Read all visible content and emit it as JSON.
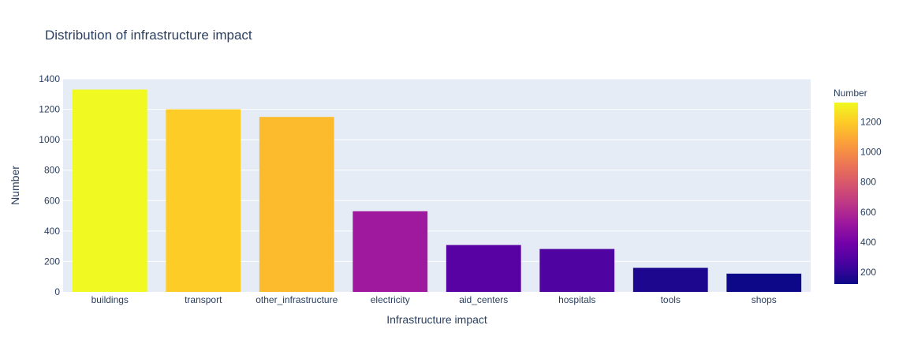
{
  "chart_data": {
    "type": "bar",
    "title": "Distribution of infrastructure impact",
    "xlabel": "Infrastructure impact",
    "ylabel": "Number",
    "categories": [
      "buildings",
      "transport",
      "other_infrastructure",
      "electricity",
      "aid_centers",
      "hospitals",
      "tools",
      "shops"
    ],
    "values": [
      1330,
      1200,
      1150,
      530,
      308,
      282,
      158,
      120
    ],
    "ylim": [
      0,
      1400
    ],
    "yticks": [
      "0",
      "200",
      "400",
      "600",
      "800",
      "1000",
      "1200",
      "1400"
    ],
    "grid": true,
    "colorbar": {
      "title": "Number",
      "colorscale": "plasma",
      "range": [
        120,
        1330
      ],
      "ticks": [
        "200",
        "400",
        "600",
        "800",
        "1000",
        "1200"
      ],
      "tick_values": [
        200,
        400,
        600,
        800,
        1000,
        1200
      ]
    },
    "colors": {
      "plot_background": "#e5ecf6",
      "gridline": "#ffffff",
      "text": "#2a3f5f"
    }
  }
}
